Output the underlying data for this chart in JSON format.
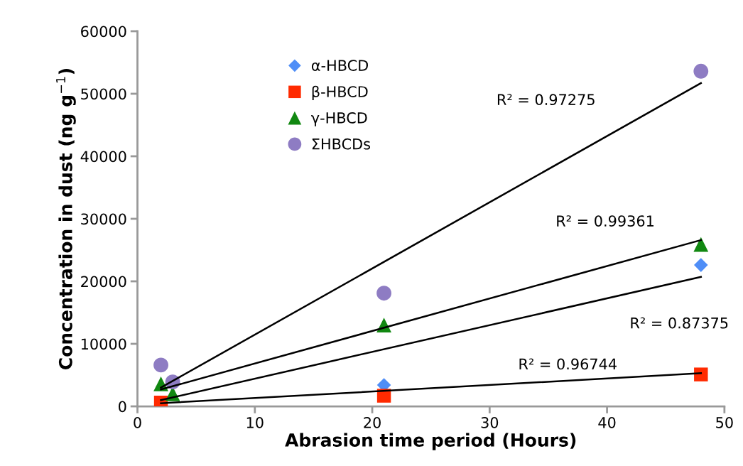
{
  "chart_data": {
    "type": "scatter",
    "xlabel": "Abrasion time period (Hours)",
    "ylabel": "Concentration in dust (ng g$^{−1}$)",
    "xlim": [
      0,
      50
    ],
    "xticks": [
      0,
      10,
      20,
      30,
      40,
      50
    ],
    "ylim": [
      0,
      60000
    ],
    "yticks": [
      0,
      10000,
      20000,
      30000,
      40000,
      50000,
      60000
    ],
    "grid": false,
    "legend": "top left",
    "series": [
      {
        "name": "α-HBCD",
        "marker": "diamond",
        "color": "#4f8ef7",
        "x": [
          21,
          48
        ],
        "values": [
          3400,
          22600
        ]
      },
      {
        "name": "β-HBCD",
        "marker": "square",
        "color": "#ff2a00",
        "x": [
          2,
          3,
          21,
          48
        ],
        "values": [
          600,
          null,
          1700,
          5100
        ]
      },
      {
        "name": "γ-HBCD",
        "marker": "triangle",
        "color": "#118811",
        "x": [
          2,
          3,
          21,
          48
        ],
        "values": [
          3600,
          2000,
          13000,
          25900
        ]
      },
      {
        "name": "ΣHBCDs",
        "marker": "circle",
        "color": "#8e7cc3",
        "x": [
          2,
          3,
          21,
          48
        ],
        "values": [
          6600,
          3900,
          18100,
          53600
        ]
      },
      {
        "type": "line",
        "marker": "none",
        "color": "#000000",
        "x": [
          2,
          48
        ],
        "values": [
          3000,
          51700
        ]
      },
      {
        "type": "line",
        "marker": "none",
        "color": "#000000",
        "x": [
          2,
          48
        ],
        "values": [
          2700,
          26600
        ]
      },
      {
        "type": "line",
        "marker": "none",
        "color": "#000000",
        "x": [
          2,
          48
        ],
        "values": [
          1000,
          20700
        ]
      },
      {
        "type": "line",
        "marker": "none",
        "color": "#000000",
        "x": [
          2,
          48
        ],
        "values": [
          500,
          5300
        ]
      }
    ],
    "annotations": [
      "R² = 0.97275",
      "R² = 0.99361",
      "R² = 0.87375",
      "R² = 0.96744"
    ]
  }
}
